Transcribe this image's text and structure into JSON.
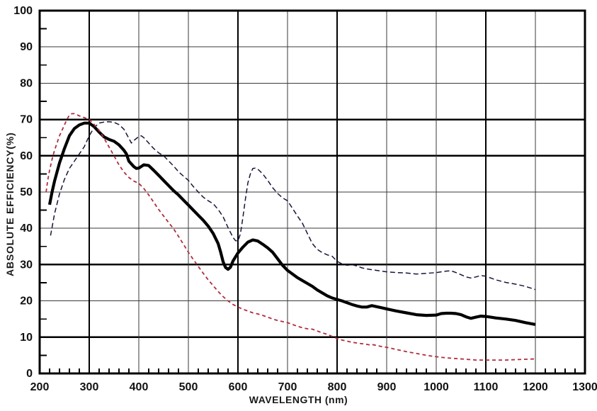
{
  "figure": {
    "background": "#ffffff",
    "x_axis": {
      "title": "WAVELENGTH (nm)",
      "min": 200,
      "max": 1300,
      "major_step": 100,
      "minor_step": 20,
      "tick_labels": [
        "200",
        "300",
        "400",
        "500",
        "600",
        "700",
        "800",
        "900",
        "1000",
        "1100",
        "1200",
        "1300"
      ]
    },
    "y_axis": {
      "title": "ABSOLUTE EFFICIENCY(%)",
      "min": 0,
      "max": 100,
      "major_step": 10,
      "minor_step": 5,
      "tick_labels": [
        "0",
        "10",
        "20",
        "30",
        "40",
        "50",
        "60",
        "70",
        "80",
        "90",
        "100"
      ]
    },
    "grid_color_thin": "#3a3a3a",
    "grid_color_thick": "#000000",
    "border_color": "#000000"
  },
  "chart_data": {
    "type": "line",
    "title": "",
    "xlabel": "WAVELENGTH (nm)",
    "ylabel": "ABSOLUTE EFFICIENCY(%)",
    "xlim": [
      200,
      1300
    ],
    "ylim": [
      0,
      100
    ],
    "grid": true,
    "legend": "none",
    "thick_gridlines_x": [
      300,
      600,
      800,
      1100
    ],
    "thick_gridlines_y": [
      10,
      30,
      60,
      70
    ],
    "series": [
      {
        "name": "thick-solid-black-curve",
        "style": "solid",
        "color": "#000000",
        "width": 4.2,
        "dash": "",
        "points": [
          [
            220,
            46.5
          ],
          [
            225,
            50
          ],
          [
            230,
            53
          ],
          [
            240,
            58
          ],
          [
            250,
            62
          ],
          [
            260,
            65.5
          ],
          [
            270,
            67.5
          ],
          [
            280,
            68.5
          ],
          [
            290,
            69
          ],
          [
            300,
            69
          ],
          [
            310,
            68
          ],
          [
            320,
            66.5
          ],
          [
            330,
            65.2
          ],
          [
            340,
            64.5
          ],
          [
            350,
            64
          ],
          [
            360,
            63
          ],
          [
            370,
            61.5
          ],
          [
            375,
            60.5
          ],
          [
            380,
            58.5
          ],
          [
            390,
            57
          ],
          [
            395,
            56.5
          ],
          [
            400,
            56.6
          ],
          [
            410,
            57.5
          ],
          [
            420,
            57.3
          ],
          [
            430,
            56
          ],
          [
            440,
            54.6
          ],
          [
            450,
            53.2
          ],
          [
            460,
            51.8
          ],
          [
            470,
            50.4
          ],
          [
            480,
            49.2
          ],
          [
            490,
            47.8
          ],
          [
            500,
            46.4
          ],
          [
            510,
            45
          ],
          [
            520,
            43.6
          ],
          [
            530,
            42.2
          ],
          [
            540,
            40.6
          ],
          [
            550,
            38.6
          ],
          [
            560,
            35.8
          ],
          [
            565,
            33.5
          ],
          [
            570,
            30.8
          ],
          [
            575,
            29.2
          ],
          [
            580,
            28.7
          ],
          [
            585,
            29.3
          ],
          [
            590,
            31
          ],
          [
            600,
            33.2
          ],
          [
            610,
            34.8
          ],
          [
            620,
            36.2
          ],
          [
            630,
            36.8
          ],
          [
            640,
            36.5
          ],
          [
            650,
            35.6
          ],
          [
            660,
            34.6
          ],
          [
            670,
            33.4
          ],
          [
            680,
            31.6
          ],
          [
            690,
            29.8
          ],
          [
            700,
            28.4
          ],
          [
            710,
            27.4
          ],
          [
            720,
            26.4
          ],
          [
            730,
            25.6
          ],
          [
            740,
            24.8
          ],
          [
            750,
            24
          ],
          [
            760,
            23
          ],
          [
            770,
            22.2
          ],
          [
            780,
            21.4
          ],
          [
            790,
            20.8
          ],
          [
            800,
            20.4
          ],
          [
            810,
            20
          ],
          [
            820,
            19.5
          ],
          [
            830,
            19
          ],
          [
            840,
            18.6
          ],
          [
            850,
            18.3
          ],
          [
            860,
            18.3
          ],
          [
            870,
            18.7
          ],
          [
            880,
            18.4
          ],
          [
            890,
            18.1
          ],
          [
            900,
            17.8
          ],
          [
            920,
            17.2
          ],
          [
            940,
            16.7
          ],
          [
            960,
            16.2
          ],
          [
            980,
            16
          ],
          [
            1000,
            16.1
          ],
          [
            1010,
            16.5
          ],
          [
            1020,
            16.6
          ],
          [
            1030,
            16.6
          ],
          [
            1040,
            16.5
          ],
          [
            1050,
            16.2
          ],
          [
            1060,
            15.6
          ],
          [
            1070,
            15.2
          ],
          [
            1080,
            15.5
          ],
          [
            1090,
            15.8
          ],
          [
            1100,
            15.7
          ],
          [
            1110,
            15.5
          ],
          [
            1120,
            15.3
          ],
          [
            1140,
            15
          ],
          [
            1160,
            14.6
          ],
          [
            1180,
            14
          ],
          [
            1200,
            13.5
          ]
        ]
      },
      {
        "name": "thin-dashed-black-curve",
        "style": "dashed",
        "color": "#16163a",
        "width": 1.5,
        "dash": "7 4",
        "points": [
          [
            222,
            38
          ],
          [
            230,
            44
          ],
          [
            240,
            49.5
          ],
          [
            250,
            53.5
          ],
          [
            260,
            56.5
          ],
          [
            270,
            58.5
          ],
          [
            280,
            60.5
          ],
          [
            290,
            62.5
          ],
          [
            300,
            65.5
          ],
          [
            310,
            67.8
          ],
          [
            320,
            69
          ],
          [
            330,
            69.3
          ],
          [
            340,
            69.4
          ],
          [
            350,
            69.2
          ],
          [
            360,
            68.6
          ],
          [
            370,
            67.3
          ],
          [
            380,
            64.8
          ],
          [
            385,
            63.5
          ],
          [
            390,
            64.2
          ],
          [
            400,
            65.3
          ],
          [
            405,
            65.5
          ],
          [
            410,
            65
          ],
          [
            420,
            63.5
          ],
          [
            430,
            62
          ],
          [
            440,
            60.8
          ],
          [
            450,
            60
          ],
          [
            460,
            58.6
          ],
          [
            470,
            57.2
          ],
          [
            480,
            55.6
          ],
          [
            490,
            54.4
          ],
          [
            500,
            53.2
          ],
          [
            510,
            51.5
          ],
          [
            520,
            50
          ],
          [
            530,
            48.6
          ],
          [
            540,
            47.6
          ],
          [
            550,
            46.8
          ],
          [
            560,
            45.2
          ],
          [
            570,
            43.2
          ],
          [
            580,
            40.2
          ],
          [
            590,
            37.5
          ],
          [
            595,
            36.6
          ],
          [
            600,
            36.5
          ],
          [
            605,
            38.5
          ],
          [
            610,
            43
          ],
          [
            615,
            48
          ],
          [
            620,
            52.5
          ],
          [
            625,
            55
          ],
          [
            630,
            56.5
          ],
          [
            635,
            56.6
          ],
          [
            640,
            56.3
          ],
          [
            650,
            55
          ],
          [
            660,
            53.2
          ],
          [
            670,
            51.2
          ],
          [
            680,
            49.6
          ],
          [
            690,
            48.4
          ],
          [
            700,
            47.6
          ],
          [
            710,
            45.5
          ],
          [
            720,
            43.4
          ],
          [
            730,
            41.4
          ],
          [
            740,
            38.6
          ],
          [
            750,
            35.8
          ],
          [
            760,
            34.2
          ],
          [
            770,
            33.3
          ],
          [
            780,
            32.7
          ],
          [
            790,
            32.3
          ],
          [
            800,
            30.9
          ],
          [
            810,
            30.2
          ],
          [
            820,
            29.8
          ],
          [
            830,
            30
          ],
          [
            840,
            29.6
          ],
          [
            850,
            29.1
          ],
          [
            860,
            28.8
          ],
          [
            870,
            28.6
          ],
          [
            880,
            28.4
          ],
          [
            890,
            28.2
          ],
          [
            900,
            28
          ],
          [
            920,
            27.8
          ],
          [
            940,
            27.7
          ],
          [
            960,
            27.4
          ],
          [
            980,
            27.6
          ],
          [
            1000,
            27.8
          ],
          [
            1010,
            28
          ],
          [
            1020,
            28.2
          ],
          [
            1030,
            28.3
          ],
          [
            1040,
            27.8
          ],
          [
            1050,
            27.2
          ],
          [
            1060,
            26.6
          ],
          [
            1070,
            26.3
          ],
          [
            1080,
            26.6
          ],
          [
            1090,
            27
          ],
          [
            1100,
            26.8
          ],
          [
            1110,
            26.3
          ],
          [
            1120,
            25.8
          ],
          [
            1140,
            25.1
          ],
          [
            1160,
            24.6
          ],
          [
            1180,
            24
          ],
          [
            1200,
            23.1
          ]
        ]
      },
      {
        "name": "red-dashed-curve",
        "style": "dashed",
        "color": "#b02c3e",
        "width": 1.8,
        "dash": "5 4",
        "points": [
          [
            213,
            50
          ],
          [
            216,
            53
          ],
          [
            220,
            56
          ],
          [
            225,
            59
          ],
          [
            230,
            61.5
          ],
          [
            235,
            63.5
          ],
          [
            240,
            65.5
          ],
          [
            245,
            67
          ],
          [
            250,
            68.5
          ],
          [
            255,
            70
          ],
          [
            260,
            71.2
          ],
          [
            265,
            71.6
          ],
          [
            270,
            71.6
          ],
          [
            275,
            71.3
          ],
          [
            280,
            71
          ],
          [
            290,
            70.5
          ],
          [
            300,
            70
          ],
          [
            310,
            68.6
          ],
          [
            320,
            67
          ],
          [
            330,
            64.8
          ],
          [
            340,
            62.4
          ],
          [
            350,
            60
          ],
          [
            360,
            57.5
          ],
          [
            370,
            55.5
          ],
          [
            380,
            54
          ],
          [
            390,
            53
          ],
          [
            400,
            52.4
          ],
          [
            410,
            51
          ],
          [
            420,
            49.2
          ],
          [
            430,
            47.2
          ],
          [
            440,
            45.2
          ],
          [
            450,
            43.4
          ],
          [
            460,
            41.6
          ],
          [
            470,
            39.9
          ],
          [
            480,
            37.8
          ],
          [
            490,
            35.6
          ],
          [
            500,
            33.4
          ],
          [
            510,
            31.4
          ],
          [
            520,
            29.5
          ],
          [
            530,
            27.6
          ],
          [
            540,
            25.8
          ],
          [
            550,
            24.2
          ],
          [
            560,
            22.6
          ],
          [
            570,
            21.2
          ],
          [
            580,
            20
          ],
          [
            590,
            19
          ],
          [
            600,
            18.3
          ],
          [
            610,
            17.7
          ],
          [
            620,
            17.2
          ],
          [
            630,
            16.7
          ],
          [
            640,
            16.4
          ],
          [
            650,
            16
          ],
          [
            660,
            15.5
          ],
          [
            670,
            15
          ],
          [
            680,
            14.6
          ],
          [
            690,
            14.3
          ],
          [
            700,
            14
          ],
          [
            710,
            13.5
          ],
          [
            720,
            13
          ],
          [
            730,
            12.6
          ],
          [
            740,
            12.3
          ],
          [
            750,
            12.2
          ],
          [
            760,
            11.7
          ],
          [
            770,
            11.2
          ],
          [
            780,
            10.8
          ],
          [
            790,
            10.2
          ],
          [
            800,
            9.6
          ],
          [
            810,
            9.2
          ],
          [
            820,
            8.9
          ],
          [
            830,
            8.6
          ],
          [
            840,
            8.4
          ],
          [
            850,
            8.2
          ],
          [
            860,
            8
          ],
          [
            865,
            7.9
          ],
          [
            870,
            8
          ],
          [
            880,
            7.7
          ],
          [
            890,
            7.4
          ],
          [
            900,
            7.2
          ],
          [
            920,
            6.6
          ],
          [
            940,
            6
          ],
          [
            960,
            5.5
          ],
          [
            980,
            5
          ],
          [
            1000,
            4.6
          ],
          [
            1020,
            4.3
          ],
          [
            1040,
            4.1
          ],
          [
            1060,
            3.9
          ],
          [
            1080,
            3.7
          ],
          [
            1100,
            3.7
          ],
          [
            1120,
            3.7
          ],
          [
            1140,
            3.7
          ],
          [
            1160,
            3.8
          ],
          [
            1180,
            3.9
          ],
          [
            1200,
            4
          ]
        ]
      }
    ]
  }
}
